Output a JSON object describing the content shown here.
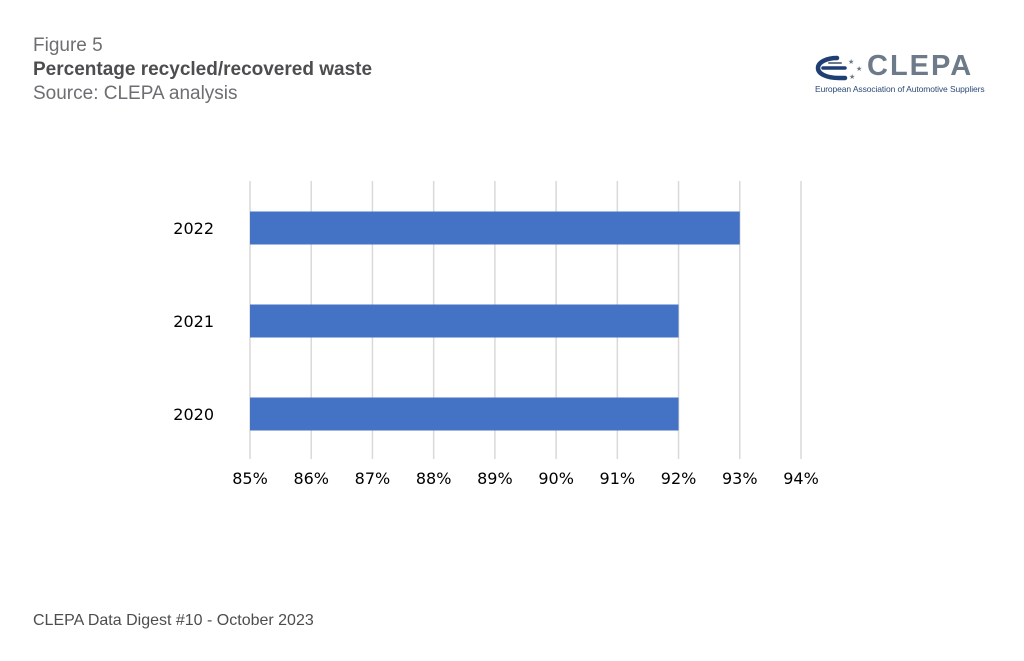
{
  "header": {
    "figure_label": "Figure 5",
    "title": "Percentage recycled/recovered waste",
    "source": "Source: CLEPA analysis"
  },
  "logo": {
    "name": "CLEPA",
    "tagline": "European Association of Automotive Suppliers"
  },
  "footer": {
    "text": "CLEPA Data Digest #10 - October 2023"
  },
  "colors": {
    "bar": "#4472c4",
    "grid": "#d9d9d9",
    "tick_text": "#000000",
    "logo_blue": "#1f3f74",
    "logo_gray": "#6c7a89"
  },
  "chart_data": {
    "type": "bar",
    "orientation": "horizontal",
    "categories": [
      "2022",
      "2021",
      "2020"
    ],
    "values": [
      93,
      92,
      92
    ],
    "xlim": [
      85,
      94
    ],
    "xticks": [
      "85%",
      "86%",
      "87%",
      "88%",
      "89%",
      "90%",
      "91%",
      "92%",
      "93%",
      "94%"
    ],
    "unit": "%",
    "grid": true,
    "legend": "none",
    "xlabel": "",
    "ylabel": ""
  }
}
